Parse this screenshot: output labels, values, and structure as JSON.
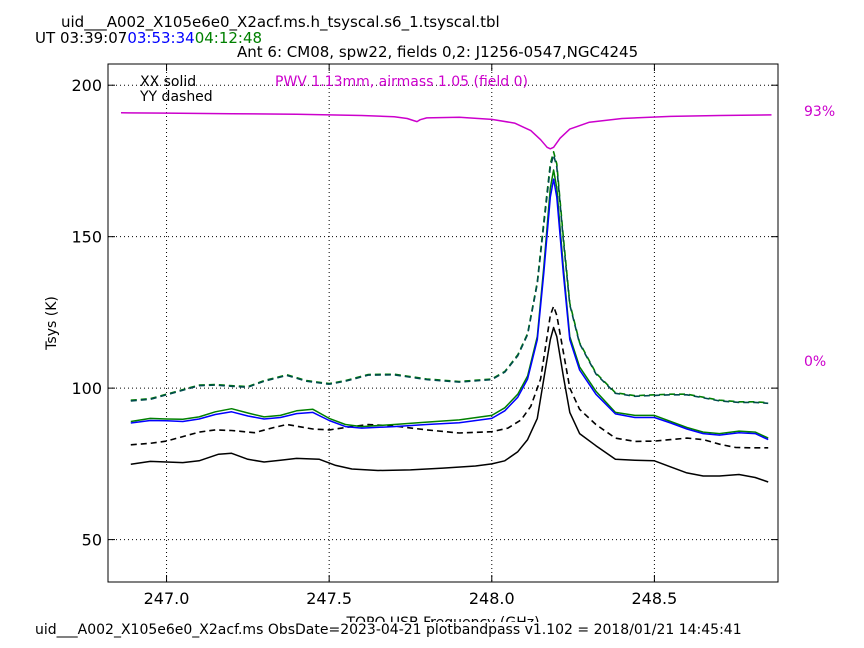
{
  "header": {
    "table_title": "uid___A002_X105e6e0_X2acf.ms.h_tsyscal.s6_1.tsyscal.tbl",
    "ut_prefix": "UT",
    "times": [
      {
        "text": "03:39:07",
        "color": "#000000"
      },
      {
        "text": "03:53:34",
        "color": "#0000ff"
      },
      {
        "text": "04:12:48",
        "color": "#008000"
      }
    ],
    "subtitle": "Ant 6: CM08,  spw22,  fields 0,2: J1256-0547,NGC4245"
  },
  "footer": {
    "text": "uid___A002_X105e6e0_X2acf.ms  ObsDate=2023-04-21   plotbandpass v1.102 = 2018/01/21 14:45:41"
  },
  "chart_data": {
    "type": "line",
    "xlabel": "TOPO USB Frequency (GHz)",
    "ylabel": "Tsys (K)",
    "xlim": [
      246.82,
      248.88
    ],
    "ylim": [
      36,
      207
    ],
    "xticks": [
      247.0,
      247.5,
      248.0,
      248.5
    ],
    "xtick_labels": [
      "247.0",
      "247.5",
      "248.0",
      "248.5"
    ],
    "yticks": [
      50,
      100,
      150,
      200
    ],
    "ytick_labels": [
      "50",
      "100",
      "150",
      "200"
    ],
    "grid": true,
    "legend": {
      "xx": "XX solid",
      "yy": "YY dashed"
    },
    "pwv_label": "PWV 1.13mm, airmass 1.05 (field 0)",
    "right_axis_labels": {
      "top": "93%",
      "bottom": "0%"
    },
    "colors": {
      "black": "#000000",
      "blue": "#0000ff",
      "green": "#008000",
      "magenta": "#cc00cc"
    },
    "series": [
      {
        "color": "#000000",
        "style": "solid",
        "points": [
          [
            246.89,
            74.9
          ],
          [
            246.95,
            75.8
          ],
          [
            247.05,
            75.4
          ],
          [
            247.1,
            76.0
          ],
          [
            247.16,
            78.2
          ],
          [
            247.2,
            78.5
          ],
          [
            247.25,
            76.5
          ],
          [
            247.3,
            75.6
          ],
          [
            247.35,
            76.2
          ],
          [
            247.4,
            76.8
          ],
          [
            247.47,
            76.5
          ],
          [
            247.52,
            74.5
          ],
          [
            247.57,
            73.3
          ],
          [
            247.65,
            72.8
          ],
          [
            247.75,
            73.0
          ],
          [
            247.85,
            73.6
          ],
          [
            247.95,
            74.3
          ],
          [
            248.0,
            75.0
          ],
          [
            248.04,
            76.0
          ],
          [
            248.08,
            79.0
          ],
          [
            248.11,
            83.0
          ],
          [
            248.14,
            90.0
          ],
          [
            248.16,
            103.0
          ],
          [
            248.18,
            116.0
          ],
          [
            248.19,
            120.0
          ],
          [
            248.2,
            117.0
          ],
          [
            248.22,
            104.0
          ],
          [
            248.24,
            92.0
          ],
          [
            248.27,
            85.0
          ],
          [
            248.32,
            81.0
          ],
          [
            248.38,
            76.5
          ],
          [
            248.44,
            76.2
          ],
          [
            248.5,
            76.0
          ],
          [
            248.55,
            74.0
          ],
          [
            248.6,
            72.0
          ],
          [
            248.65,
            71.0
          ],
          [
            248.7,
            71.0
          ],
          [
            248.76,
            71.5
          ],
          [
            248.81,
            70.5
          ],
          [
            248.85,
            69.0
          ]
        ]
      },
      {
        "color": "#000000",
        "style": "dashed",
        "points": [
          [
            246.89,
            81.3
          ],
          [
            246.95,
            81.8
          ],
          [
            247.0,
            82.5
          ],
          [
            247.05,
            84.0
          ],
          [
            247.1,
            85.5
          ],
          [
            247.15,
            86.2
          ],
          [
            247.2,
            86.0
          ],
          [
            247.27,
            85.3
          ],
          [
            247.33,
            87.0
          ],
          [
            247.37,
            88.0
          ],
          [
            247.45,
            86.5
          ],
          [
            247.5,
            86.2
          ],
          [
            247.55,
            87.0
          ],
          [
            247.62,
            88.0
          ],
          [
            247.7,
            87.5
          ],
          [
            247.8,
            86.2
          ],
          [
            247.9,
            85.2
          ],
          [
            248.0,
            85.6
          ],
          [
            248.05,
            86.8
          ],
          [
            248.09,
            89.5
          ],
          [
            248.12,
            94.0
          ],
          [
            248.15,
            103.0
          ],
          [
            248.17,
            117.0
          ],
          [
            248.18,
            124.0
          ],
          [
            248.19,
            127.0
          ],
          [
            248.2,
            124.0
          ],
          [
            248.22,
            112.0
          ],
          [
            248.24,
            100.0
          ],
          [
            248.27,
            93.0
          ],
          [
            248.32,
            88.0
          ],
          [
            248.38,
            83.5
          ],
          [
            248.44,
            82.4
          ],
          [
            248.5,
            82.5
          ],
          [
            248.55,
            83.0
          ],
          [
            248.6,
            83.5
          ],
          [
            248.65,
            83.0
          ],
          [
            248.7,
            81.5
          ],
          [
            248.75,
            80.4
          ],
          [
            248.8,
            80.3
          ],
          [
            248.85,
            80.3
          ]
        ]
      },
      {
        "color": "#008000",
        "style": "solid",
        "points": [
          [
            246.89,
            89.0
          ],
          [
            246.95,
            90.0
          ],
          [
            247.0,
            89.8
          ],
          [
            247.05,
            89.7
          ],
          [
            247.1,
            90.5
          ],
          [
            247.15,
            92.2
          ],
          [
            247.2,
            93.2
          ],
          [
            247.25,
            91.8
          ],
          [
            247.3,
            90.5
          ],
          [
            247.35,
            91.0
          ],
          [
            247.4,
            92.5
          ],
          [
            247.45,
            93.0
          ],
          [
            247.5,
            90.0
          ],
          [
            247.55,
            88.0
          ],
          [
            247.6,
            87.3
          ],
          [
            247.7,
            88.0
          ],
          [
            247.8,
            88.8
          ],
          [
            247.9,
            89.5
          ],
          [
            248.0,
            91.0
          ],
          [
            248.04,
            93.5
          ],
          [
            248.08,
            98.0
          ],
          [
            248.11,
            104.0
          ],
          [
            248.14,
            117.0
          ],
          [
            248.16,
            140.0
          ],
          [
            248.18,
            166.0
          ],
          [
            248.19,
            172.0
          ],
          [
            248.2,
            166.0
          ],
          [
            248.22,
            140.0
          ],
          [
            248.24,
            117.0
          ],
          [
            248.27,
            107.0
          ],
          [
            248.32,
            99.0
          ],
          [
            248.38,
            92.0
          ],
          [
            248.44,
            91.0
          ],
          [
            248.5,
            91.0
          ],
          [
            248.55,
            89.0
          ],
          [
            248.6,
            87.0
          ],
          [
            248.65,
            85.5
          ],
          [
            248.7,
            85.0
          ],
          [
            248.76,
            85.8
          ],
          [
            248.81,
            85.5
          ],
          [
            248.85,
            83.5
          ]
        ]
      },
      {
        "color": "#0000ff",
        "style": "solid",
        "points": [
          [
            246.89,
            88.5
          ],
          [
            246.95,
            89.3
          ],
          [
            247.0,
            89.2
          ],
          [
            247.05,
            89.0
          ],
          [
            247.1,
            89.8
          ],
          [
            247.15,
            91.3
          ],
          [
            247.2,
            92.2
          ],
          [
            247.25,
            90.8
          ],
          [
            247.3,
            89.8
          ],
          [
            247.35,
            90.3
          ],
          [
            247.4,
            91.6
          ],
          [
            247.45,
            92.0
          ],
          [
            247.5,
            89.3
          ],
          [
            247.55,
            87.3
          ],
          [
            247.6,
            86.8
          ],
          [
            247.7,
            87.3
          ],
          [
            247.8,
            88.0
          ],
          [
            247.9,
            88.6
          ],
          [
            248.0,
            90.0
          ],
          [
            248.04,
            92.5
          ],
          [
            248.08,
            97.0
          ],
          [
            248.11,
            103.0
          ],
          [
            248.14,
            116.0
          ],
          [
            248.16,
            138.0
          ],
          [
            248.18,
            163.0
          ],
          [
            248.19,
            169.0
          ],
          [
            248.2,
            163.0
          ],
          [
            248.22,
            138.0
          ],
          [
            248.24,
            116.0
          ],
          [
            248.27,
            106.0
          ],
          [
            248.32,
            98.0
          ],
          [
            248.38,
            91.5
          ],
          [
            248.44,
            90.3
          ],
          [
            248.5,
            90.3
          ],
          [
            248.55,
            88.5
          ],
          [
            248.6,
            86.5
          ],
          [
            248.65,
            85.0
          ],
          [
            248.7,
            84.5
          ],
          [
            248.76,
            85.3
          ],
          [
            248.81,
            85.0
          ],
          [
            248.85,
            83.0
          ]
        ]
      },
      {
        "color": "#008000",
        "style": "dashed",
        "points": [
          [
            246.89,
            96.0
          ],
          [
            246.95,
            96.5
          ],
          [
            247.0,
            98.0
          ],
          [
            247.05,
            99.5
          ],
          [
            247.1,
            101.0
          ],
          [
            247.15,
            101.2
          ],
          [
            247.2,
            100.8
          ],
          [
            247.25,
            100.5
          ],
          [
            247.3,
            102.5
          ],
          [
            247.37,
            104.4
          ],
          [
            247.43,
            102.5
          ],
          [
            247.5,
            101.5
          ],
          [
            247.55,
            102.5
          ],
          [
            247.62,
            104.5
          ],
          [
            247.7,
            104.6
          ],
          [
            247.8,
            103.0
          ],
          [
            247.9,
            102.2
          ],
          [
            248.0,
            103.0
          ],
          [
            248.04,
            105.5
          ],
          [
            248.08,
            111.0
          ],
          [
            248.11,
            118.0
          ],
          [
            248.14,
            135.0
          ],
          [
            248.16,
            155.0
          ],
          [
            248.18,
            174.0
          ],
          [
            248.19,
            178.0
          ],
          [
            248.2,
            174.0
          ],
          [
            248.22,
            150.0
          ],
          [
            248.24,
            128.0
          ],
          [
            248.27,
            115.0
          ],
          [
            248.32,
            105.0
          ],
          [
            248.38,
            98.5
          ],
          [
            248.44,
            97.5
          ],
          [
            248.5,
            97.8
          ],
          [
            248.55,
            98.0
          ],
          [
            248.6,
            98.0
          ],
          [
            248.65,
            97.0
          ],
          [
            248.7,
            96.0
          ],
          [
            248.76,
            95.5
          ],
          [
            248.81,
            95.5
          ],
          [
            248.85,
            95.2
          ]
        ]
      },
      {
        "color": "#004c4c",
        "style": "dashed",
        "points": [
          [
            246.89,
            95.8
          ],
          [
            246.95,
            96.3
          ],
          [
            247.0,
            97.8
          ],
          [
            247.05,
            99.3
          ],
          [
            247.1,
            100.8
          ],
          [
            247.15,
            101.0
          ],
          [
            247.2,
            100.6
          ],
          [
            247.25,
            100.3
          ],
          [
            247.3,
            102.3
          ],
          [
            247.37,
            104.2
          ],
          [
            247.43,
            102.3
          ],
          [
            247.5,
            101.3
          ],
          [
            247.55,
            102.3
          ],
          [
            247.62,
            104.3
          ],
          [
            247.7,
            104.4
          ],
          [
            247.8,
            102.8
          ],
          [
            247.9,
            102.0
          ],
          [
            248.0,
            102.8
          ],
          [
            248.04,
            105.3
          ],
          [
            248.08,
            110.7
          ],
          [
            248.11,
            117.7
          ],
          [
            248.14,
            134.5
          ],
          [
            248.16,
            154.0
          ],
          [
            248.18,
            173.0
          ],
          [
            248.19,
            177.0
          ],
          [
            248.2,
            173.0
          ],
          [
            248.22,
            149.0
          ],
          [
            248.24,
            127.5
          ],
          [
            248.27,
            114.7
          ],
          [
            248.32,
            104.7
          ],
          [
            248.38,
            98.3
          ],
          [
            248.44,
            97.3
          ],
          [
            248.5,
            97.6
          ],
          [
            248.55,
            97.8
          ],
          [
            248.6,
            97.8
          ],
          [
            248.65,
            96.8
          ],
          [
            248.7,
            95.8
          ],
          [
            248.76,
            95.3
          ],
          [
            248.81,
            95.3
          ],
          [
            248.85,
            95.0
          ]
        ]
      },
      {
        "color": "#cc00cc",
        "style": "solid",
        "name": "PWV 1.13mm, airmass 1.05 (field 0)",
        "points": [
          [
            246.86,
            190.9
          ],
          [
            247.0,
            190.8
          ],
          [
            247.2,
            190.6
          ],
          [
            247.4,
            190.4
          ],
          [
            247.6,
            190.0
          ],
          [
            247.7,
            189.6
          ],
          [
            247.74,
            189.0
          ],
          [
            247.76,
            188.3
          ],
          [
            247.77,
            188.0
          ],
          [
            247.78,
            188.6
          ],
          [
            247.8,
            189.2
          ],
          [
            247.9,
            189.4
          ],
          [
            248.0,
            188.7
          ],
          [
            248.07,
            187.5
          ],
          [
            248.12,
            185.0
          ],
          [
            248.15,
            182.0
          ],
          [
            248.17,
            179.5
          ],
          [
            248.18,
            179.0
          ],
          [
            248.19,
            179.5
          ],
          [
            248.21,
            182.5
          ],
          [
            248.24,
            185.5
          ],
          [
            248.3,
            187.8
          ],
          [
            248.4,
            189.0
          ],
          [
            248.55,
            189.7
          ],
          [
            248.7,
            190.0
          ],
          [
            248.86,
            190.2
          ]
        ]
      }
    ]
  }
}
